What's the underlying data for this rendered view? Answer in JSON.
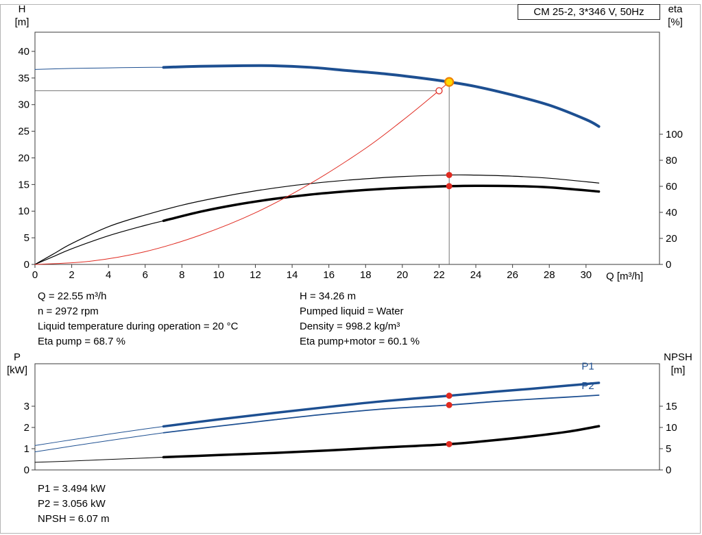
{
  "header_box": {
    "label": "CM 25-2, 3*346 V, 50Hz"
  },
  "top_info": {
    "col1": [
      "Q = 22.55 m³/h",
      "n = 2972 rpm",
      "Liquid temperature during operation = 20 °C",
      "Eta pump = 68.7 %"
    ],
    "col2": [
      "H = 34.26 m",
      "Pumped liquid = Water",
      "Density = 998.2 kg/m³",
      "Eta pump+motor = 60.1 %"
    ]
  },
  "bottom_info": [
    "P1 = 3.494 kW",
    "P2 = 3.056 kW",
    "NPSH = 6.07 m"
  ],
  "colors": {
    "blue": "#1d4f91",
    "black": "#000000",
    "red": "#e02a20",
    "frame": "#3a3a3a",
    "guide": "#666666",
    "dot_red": "#e02a20",
    "dot_yellow_fill": "#ffd800",
    "dot_yellow_stroke": "#ef8200"
  },
  "chart_data": [
    {
      "type": "line",
      "title": "CM 25-2, 3*346 V, 50Hz",
      "x": {
        "label": "Q [m³/h]",
        "min": 0,
        "max": 34,
        "ticks": [
          0,
          2,
          4,
          6,
          8,
          10,
          12,
          14,
          16,
          18,
          20,
          22,
          24,
          26,
          28,
          30
        ]
      },
      "y_left": {
        "label": [
          "H",
          "[m]"
        ],
        "min": 0,
        "max": 43.6,
        "ticks": [
          0,
          5,
          10,
          15,
          20,
          25,
          30,
          35,
          40
        ]
      },
      "y_right": {
        "label": [
          "eta",
          "[%]"
        ],
        "min": 0,
        "max": 178.4,
        "ticks": [
          0,
          20,
          40,
          60,
          80,
          100
        ]
      },
      "series": [
        {
          "name": "head-curve-extension",
          "axis": "left",
          "color": "blue",
          "width": 1,
          "points": [
            [
              0,
              36.6
            ],
            [
              2,
              36.8
            ],
            [
              4,
              36.9
            ],
            [
              6,
              37.0
            ],
            [
              7,
              37.0
            ]
          ]
        },
        {
          "name": "head-curve",
          "axis": "left",
          "color": "blue",
          "width": 4,
          "points": [
            [
              7,
              37.0
            ],
            [
              9,
              37.2
            ],
            [
              11,
              37.3
            ],
            [
              13,
              37.3
            ],
            [
              15,
              37.0
            ],
            [
              17,
              36.4
            ],
            [
              19,
              35.8
            ],
            [
              21,
              35.0
            ],
            [
              22.55,
              34.26
            ],
            [
              24,
              33.4
            ],
            [
              26,
              31.8
            ],
            [
              28,
              29.9
            ],
            [
              30,
              27.2
            ],
            [
              30.7,
              25.9
            ]
          ]
        },
        {
          "name": "eta-pump-curve",
          "axis": "right",
          "color": "black",
          "width": 1.2,
          "points": [
            [
              0,
              0
            ],
            [
              1,
              8
            ],
            [
              2,
              16
            ],
            [
              4,
              29
            ],
            [
              6,
              38
            ],
            [
              8,
              45.5
            ],
            [
              10,
              51.5
            ],
            [
              12,
              56.5
            ],
            [
              14,
              60.5
            ],
            [
              16,
              63.5
            ],
            [
              18,
              65.8
            ],
            [
              20,
              67.5
            ],
            [
              22.55,
              68.7
            ],
            [
              24,
              68.6
            ],
            [
              26,
              67.8
            ],
            [
              28,
              66.2
            ],
            [
              30.7,
              62.5
            ]
          ]
        },
        {
          "name": "eta-pump-motor-extension",
          "axis": "right",
          "color": "black",
          "width": 1.2,
          "points": [
            [
              0,
              0
            ],
            [
              1,
              6
            ],
            [
              2,
              12
            ],
            [
              4,
              22
            ],
            [
              6,
              30
            ],
            [
              7,
              33.5
            ]
          ]
        },
        {
          "name": "eta-pump-motor-curve",
          "axis": "right",
          "color": "black",
          "width": 3.5,
          "points": [
            [
              7,
              33.5
            ],
            [
              9,
              40.5
            ],
            [
              11,
              46
            ],
            [
              13,
              50.3
            ],
            [
              15,
              53.7
            ],
            [
              17,
              56.2
            ],
            [
              19,
              58.1
            ],
            [
              21,
              59.4
            ],
            [
              22.55,
              60.1
            ],
            [
              24,
              60.4
            ],
            [
              26,
              60.2
            ],
            [
              28,
              59.2
            ],
            [
              30.7,
              56.0
            ]
          ]
        },
        {
          "name": "system-curve",
          "axis": "left",
          "color": "red",
          "width": 1,
          "points": [
            [
              0,
              0
            ],
            [
              3,
              0.6
            ],
            [
              6,
              2.4
            ],
            [
              9,
              5.5
            ],
            [
              12,
              9.7
            ],
            [
              15,
              15.2
            ],
            [
              18,
              21.8
            ],
            [
              20,
              27.0
            ],
            [
              21.5,
              31.2
            ],
            [
              22.55,
              34.26
            ]
          ]
        }
      ],
      "annotations": {
        "hline": {
          "y": 32.6,
          "x1": 0,
          "x2": 22.0
        },
        "vline": {
          "x": 22.55,
          "y1": 34.26,
          "y2": 0
        },
        "open_point": {
          "x": 22.0,
          "y": 32.6,
          "axis": "left"
        },
        "duty_point": {
          "x": 22.55,
          "y": 34.26,
          "axis": "left"
        },
        "dots": [
          {
            "x": 22.55,
            "y": 68.7,
            "axis": "right"
          },
          {
            "x": 22.55,
            "y": 60.1,
            "axis": "right"
          }
        ]
      }
    },
    {
      "type": "line",
      "title": "",
      "x": {
        "label": "",
        "min": 0,
        "max": 34,
        "ticks": []
      },
      "y_left": {
        "label": [
          "P",
          "[kW]"
        ],
        "min": 0,
        "max": 5,
        "ticks": [
          0,
          1,
          2,
          3
        ]
      },
      "y_right": {
        "label": [
          "NPSH",
          "[m]"
        ],
        "min": 0,
        "max": 25,
        "ticks": [
          0,
          5,
          10,
          15
        ]
      },
      "series": [
        {
          "name": "p1-extension",
          "axis": "left",
          "color": "blue",
          "width": 1,
          "points": [
            [
              0,
              1.15
            ],
            [
              2,
              1.42
            ],
            [
              4,
              1.68
            ],
            [
              6,
              1.93
            ],
            [
              7,
              2.05
            ]
          ]
        },
        {
          "name": "p1-curve",
          "axis": "left",
          "color": "blue",
          "width": 3.5,
          "points": [
            [
              7,
              2.05
            ],
            [
              10,
              2.38
            ],
            [
              13,
              2.68
            ],
            [
              16,
              2.97
            ],
            [
              19,
              3.24
            ],
            [
              22.55,
              3.494
            ],
            [
              25,
              3.68
            ],
            [
              27,
              3.82
            ],
            [
              29,
              3.97
            ],
            [
              30.7,
              4.1
            ]
          ]
        },
        {
          "name": "p2-extension",
          "axis": "left",
          "color": "blue",
          "width": 1,
          "points": [
            [
              0,
              0.85
            ],
            [
              2,
              1.12
            ],
            [
              4,
              1.38
            ],
            [
              6,
              1.63
            ],
            [
              7,
              1.75
            ]
          ]
        },
        {
          "name": "p2-curve",
          "axis": "left",
          "color": "blue",
          "width": 1.8,
          "points": [
            [
              7,
              1.75
            ],
            [
              10,
              2.06
            ],
            [
              13,
              2.36
            ],
            [
              16,
              2.64
            ],
            [
              19,
              2.87
            ],
            [
              22.55,
              3.056
            ],
            [
              25,
              3.22
            ],
            [
              27,
              3.33
            ],
            [
              29,
              3.43
            ],
            [
              30.7,
              3.52
            ]
          ]
        },
        {
          "name": "npsh-extension",
          "axis": "right",
          "color": "black",
          "width": 1,
          "points": [
            [
              0,
              1.8
            ],
            [
              2,
              2.1
            ],
            [
              4,
              2.45
            ],
            [
              6,
              2.8
            ],
            [
              7,
              3.0
            ]
          ]
        },
        {
          "name": "npsh-curve",
          "axis": "right",
          "color": "black",
          "width": 3.5,
          "points": [
            [
              7,
              3.0
            ],
            [
              10,
              3.5
            ],
            [
              13,
              4.0
            ],
            [
              16,
              4.6
            ],
            [
              19,
              5.3
            ],
            [
              22.55,
              6.07
            ],
            [
              25,
              7.0
            ],
            [
              27,
              7.9
            ],
            [
              29,
              9.0
            ],
            [
              30.7,
              10.3
            ]
          ]
        }
      ],
      "annotations": {
        "dots": [
          {
            "x": 22.55,
            "y": 3.494,
            "axis": "left"
          },
          {
            "x": 22.55,
            "y": 3.056,
            "axis": "left"
          },
          {
            "x": 22.55,
            "y": 6.07,
            "axis": "right"
          }
        ],
        "labels": [
          {
            "text": "P1",
            "x": 30.1,
            "y": 4.72,
            "axis": "left",
            "color": "blue"
          },
          {
            "text": "P2",
            "x": 30.1,
            "y": 3.8,
            "axis": "left",
            "color": "blue"
          }
        ]
      }
    }
  ]
}
